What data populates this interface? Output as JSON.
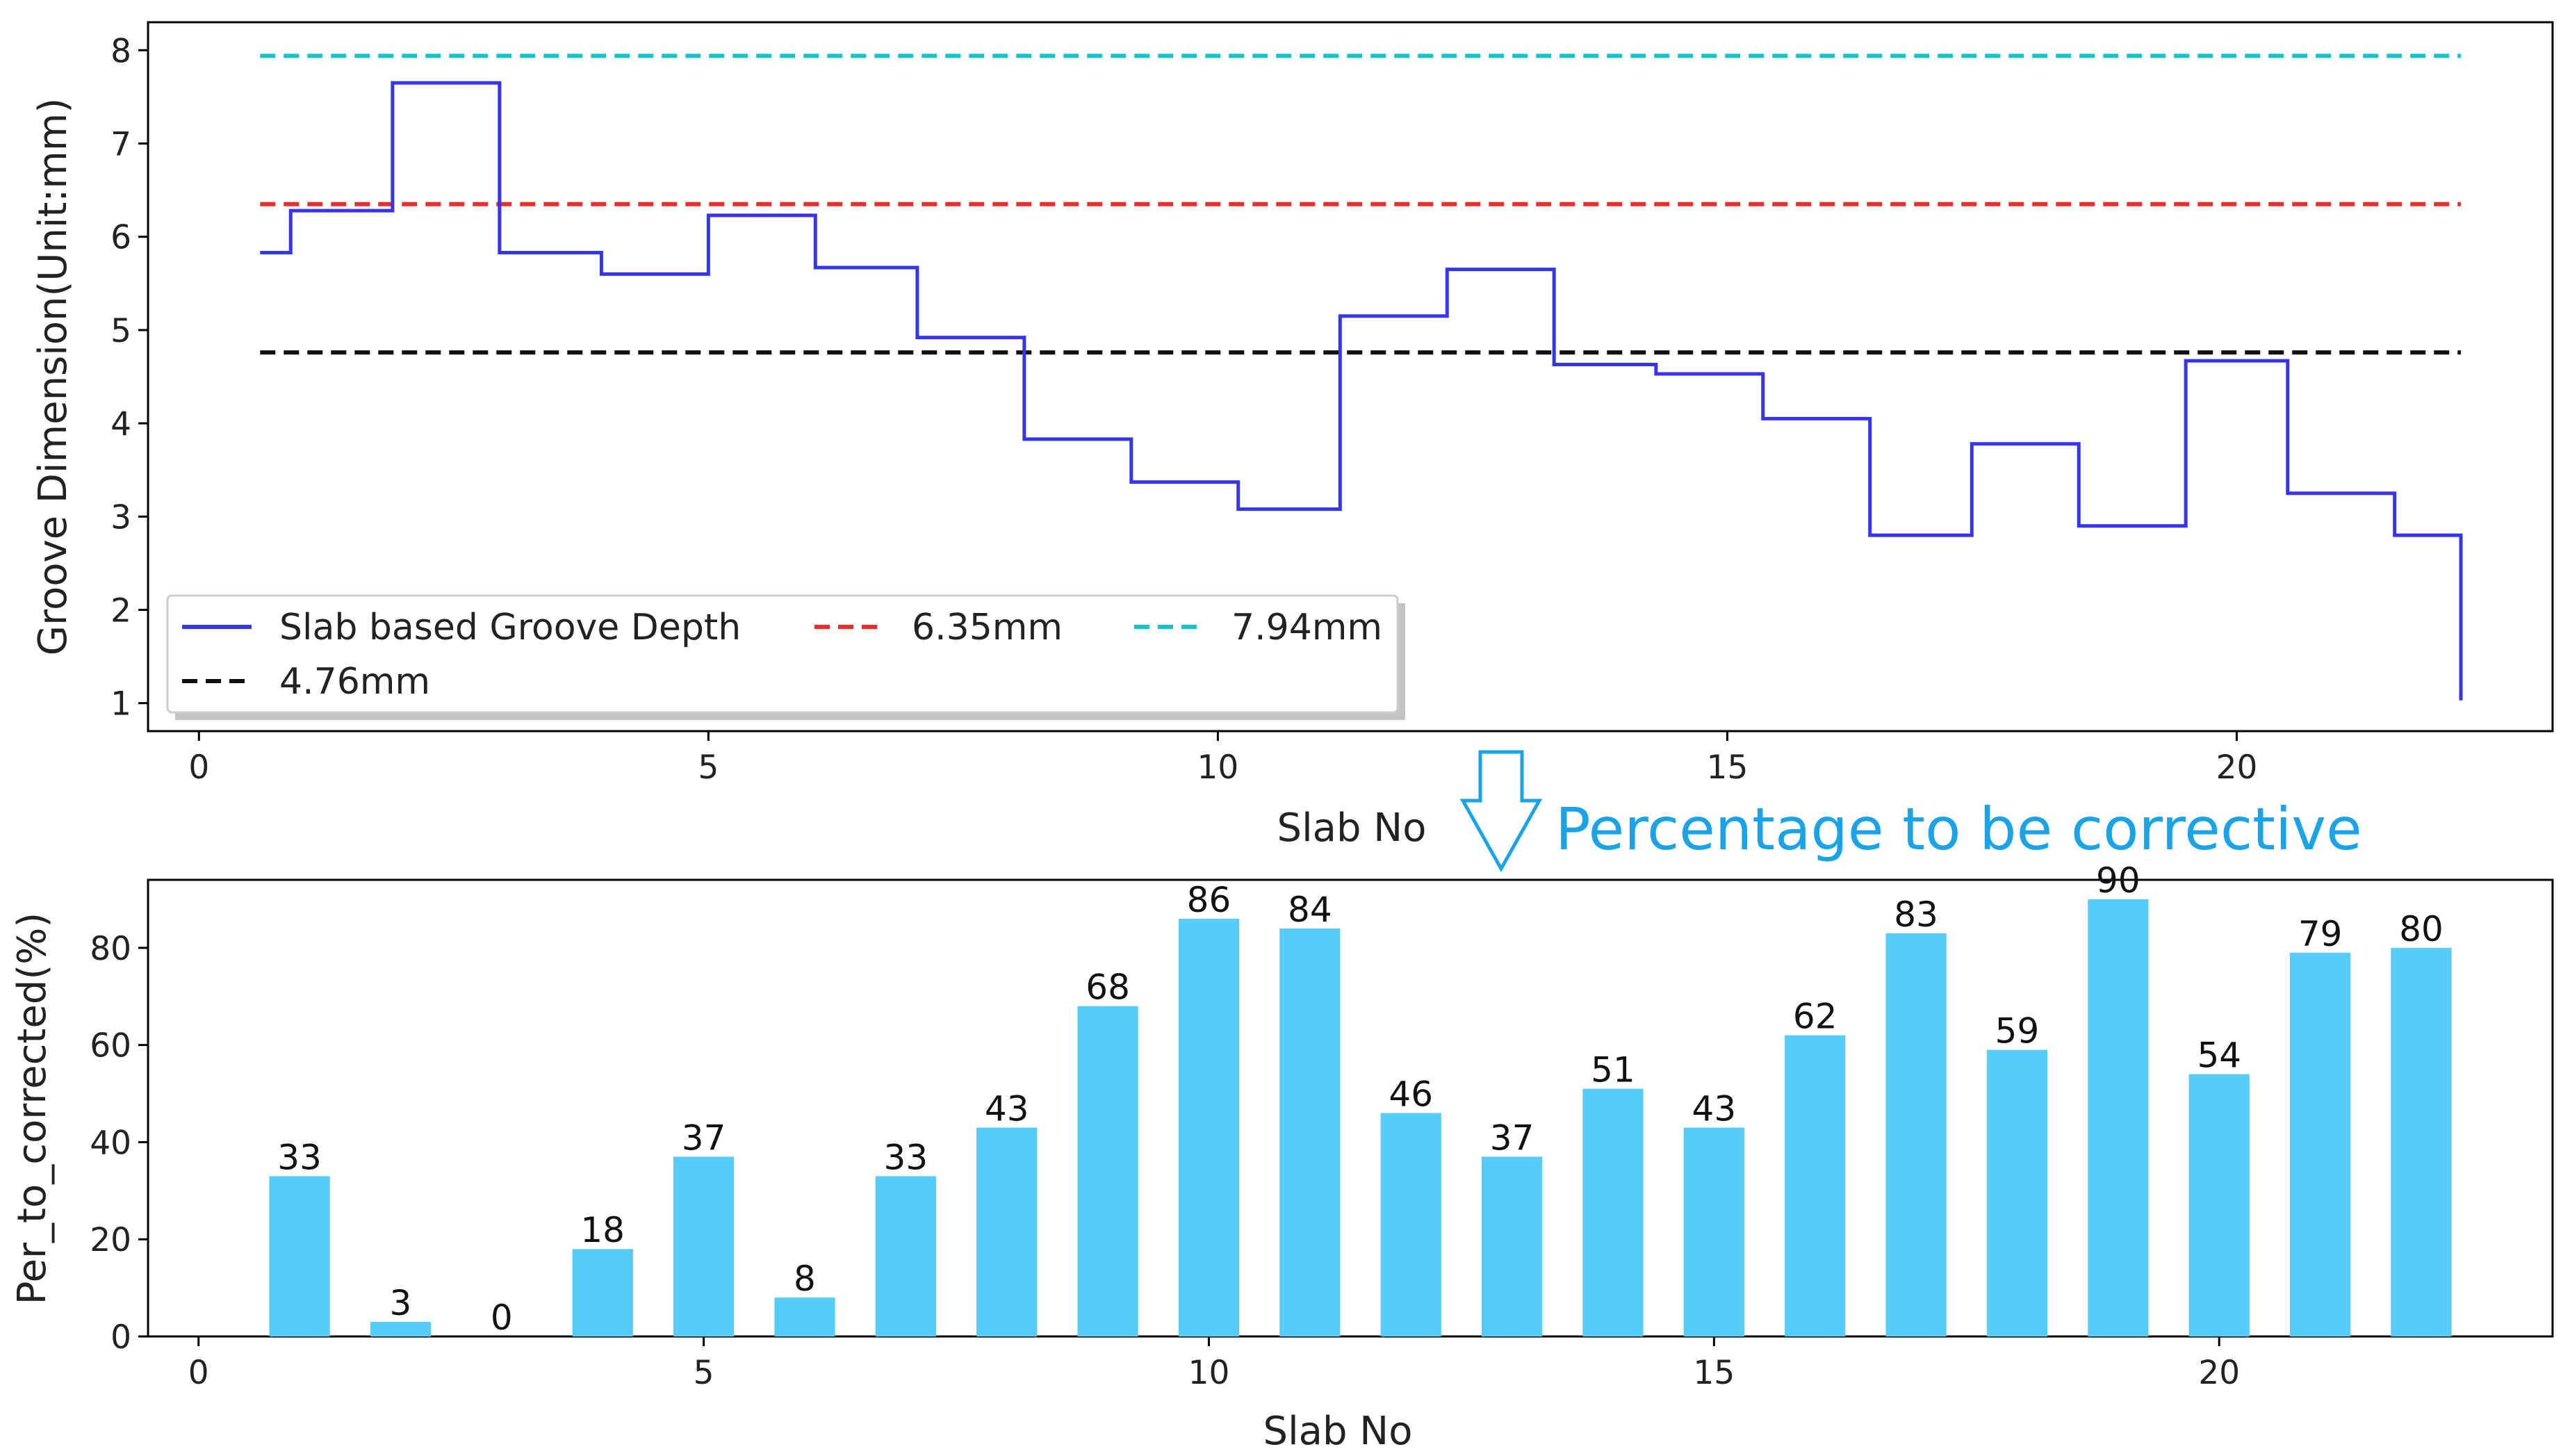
{
  "chart_data": [
    {
      "type": "line",
      "subtype": "step",
      "xlabel": "Slab No",
      "ylabel": "Groove Dimension(Unit:mm)",
      "xlim": [
        -0.5,
        23.1
      ],
      "ylim": [
        0.7,
        8.3
      ],
      "xticks": [
        0,
        5,
        10,
        15,
        20
      ],
      "yticks": [
        1,
        2,
        3,
        4,
        5,
        6,
        7,
        8
      ],
      "legend_position": "lower-left",
      "series": [
        {
          "name": "Slab based Groove Depth",
          "color": "#3535f0",
          "style": "solid",
          "steps": [
            {
              "x0": 0.6,
              "x1": 0.9,
              "y": 5.83
            },
            {
              "x0": 0.9,
              "x1": 1.9,
              "y": 6.28
            },
            {
              "x0": 1.9,
              "x1": 2.95,
              "y": 7.65
            },
            {
              "x0": 2.95,
              "x1": 3.95,
              "y": 5.83
            },
            {
              "x0": 3.95,
              "x1": 5.0,
              "y": 5.6
            },
            {
              "x0": 5.0,
              "x1": 6.05,
              "y": 6.23
            },
            {
              "x0": 6.05,
              "x1": 7.05,
              "y": 5.67
            },
            {
              "x0": 7.05,
              "x1": 8.1,
              "y": 4.92
            },
            {
              "x0": 8.1,
              "x1": 9.15,
              "y": 3.83
            },
            {
              "x0": 9.15,
              "x1": 10.2,
              "y": 3.37
            },
            {
              "x0": 10.2,
              "x1": 11.2,
              "y": 3.08
            },
            {
              "x0": 11.2,
              "x1": 12.25,
              "y": 5.15
            },
            {
              "x0": 12.25,
              "x1": 13.3,
              "y": 5.65
            },
            {
              "x0": 13.3,
              "x1": 14.3,
              "y": 4.63
            },
            {
              "x0": 14.3,
              "x1": 15.35,
              "y": 4.53
            },
            {
              "x0": 15.35,
              "x1": 16.4,
              "y": 4.05
            },
            {
              "x0": 16.4,
              "x1": 17.4,
              "y": 2.8
            },
            {
              "x0": 17.4,
              "x1": 18.45,
              "y": 3.78
            },
            {
              "x0": 18.45,
              "x1": 19.5,
              "y": 2.9
            },
            {
              "x0": 19.5,
              "x1": 20.5,
              "y": 4.67
            },
            {
              "x0": 20.5,
              "x1": 21.55,
              "y": 3.25
            },
            {
              "x0": 21.55,
              "x1": 22.2,
              "y": 2.8
            }
          ],
          "end_drop_y": 1.03
        },
        {
          "name": "6.35mm",
          "color": "#ee2b2b",
          "style": "dashed",
          "y": 6.35,
          "x_range": [
            0.6,
            22.2
          ]
        },
        {
          "name": "7.94mm",
          "color": "#12c4cc",
          "style": "dashed",
          "y": 7.94,
          "x_range": [
            0.6,
            22.2
          ]
        },
        {
          "name": "4.76mm",
          "color": "#111111",
          "style": "dashed",
          "y": 4.76,
          "x_range": [
            0.6,
            22.2
          ]
        }
      ],
      "legend": [
        {
          "label": "Slab based Groove Depth",
          "color": "#3535f0",
          "style": "solid"
        },
        {
          "label": "6.35mm",
          "color": "#ee2b2b",
          "style": "dashed"
        },
        {
          "label": "7.94mm",
          "color": "#12c4cc",
          "style": "dashed"
        },
        {
          "label": "4.76mm",
          "color": "#111111",
          "style": "dashed"
        }
      ]
    },
    {
      "type": "bar",
      "xlabel": "Slab No",
      "ylabel": "Per_to_corrected(%)",
      "xlim": [
        -0.5,
        23.3
      ],
      "ylim": [
        0,
        94
      ],
      "xticks": [
        0,
        5,
        10,
        15,
        20
      ],
      "yticks": [
        0,
        20,
        40,
        60,
        80
      ],
      "bar_color": "#55ccfa",
      "categories": [
        1,
        2,
        3,
        4,
        5,
        6,
        7,
        8,
        9,
        10,
        11,
        12,
        13,
        14,
        15,
        16,
        17,
        18,
        19,
        20,
        21,
        22
      ],
      "values": [
        33,
        3,
        0,
        18,
        37,
        8,
        33,
        43,
        68,
        86,
        84,
        46,
        37,
        51,
        43,
        62,
        83,
        59,
        90,
        54,
        79,
        80
      ],
      "data_labels": [
        "33",
        "3",
        "0",
        "18",
        "37",
        "8",
        "33",
        "43",
        "68",
        "86",
        "84",
        "46",
        "37",
        "51",
        "43",
        "62",
        "83",
        "59",
        "90",
        "54",
        "79",
        "80"
      ]
    }
  ],
  "annotation": {
    "text": "Percentage to be corrective",
    "arrow": "down-arrow-icon",
    "color": "#1aa3e6"
  }
}
